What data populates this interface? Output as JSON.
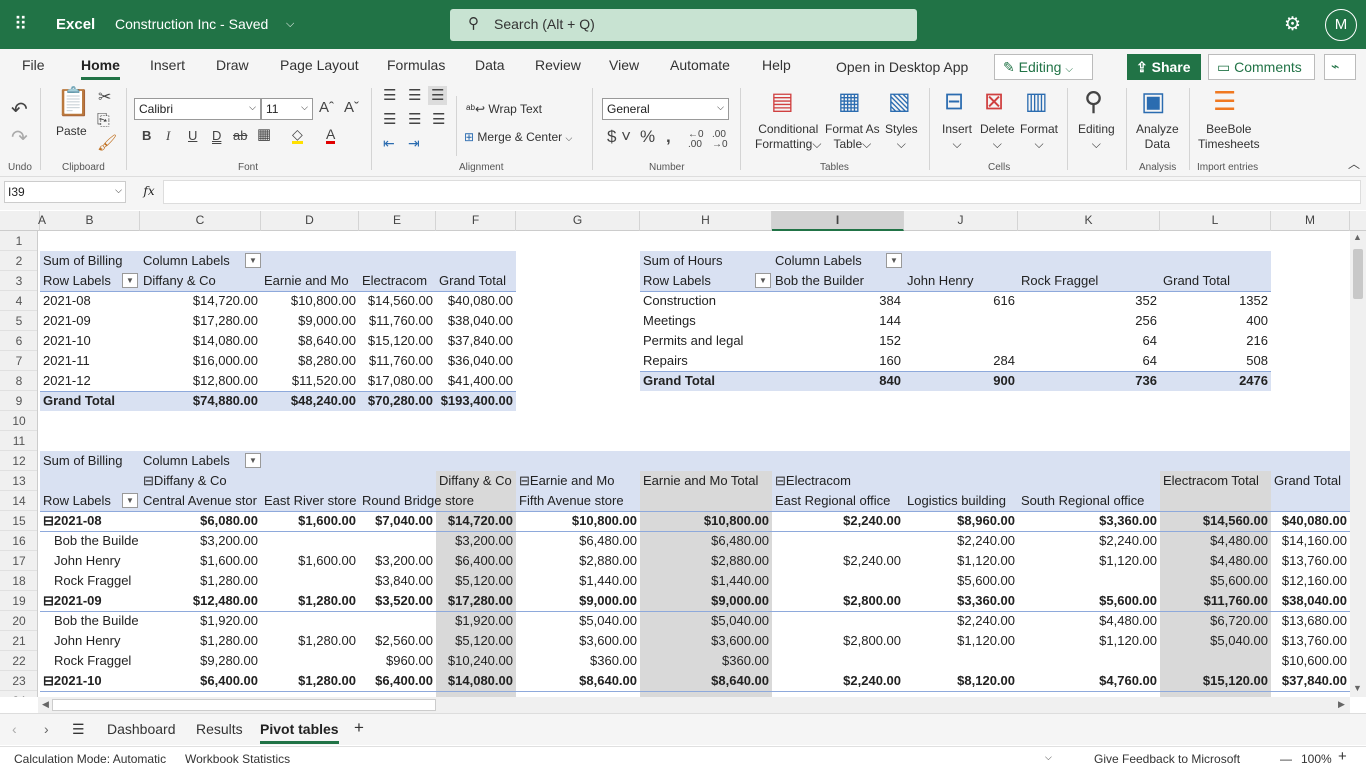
{
  "app": {
    "name": "Excel",
    "doc_title": "Construction Inc - Saved",
    "search_placeholder": "Search (Alt + Q)",
    "avatar": "M",
    "accent": "#217346"
  },
  "menu": {
    "items": [
      "File",
      "Home",
      "Insert",
      "Draw",
      "Page Layout",
      "Formulas",
      "Data",
      "Review",
      "View",
      "Automate",
      "Help"
    ],
    "open_desktop": "Open in Desktop App",
    "editing": "Editing",
    "share": "Share",
    "comments": "Comments"
  },
  "ribbon": {
    "groups": {
      "undo": "Undo",
      "clipboard": "Clipboard",
      "font": "Font",
      "alignment": "Alignment",
      "number": "Number",
      "tables": "Tables",
      "cells": "Cells",
      "analysis": "Analysis",
      "import": "Import entries"
    },
    "paste": "Paste",
    "font_name": "Calibri",
    "font_size": "11",
    "wrap_text": "Wrap Text",
    "merge_center": "Merge & Center",
    "number_format": "General",
    "conditional_1": "Conditional",
    "conditional_2": "Formatting",
    "format_table_1": "Format As",
    "format_table_2": "Table",
    "styles": "Styles",
    "insert": "Insert",
    "delete": "Delete",
    "format": "Format",
    "editing": "Editing",
    "analyze_1": "Analyze",
    "analyze_2": "Data",
    "beebole_1": "BeeBole",
    "beebole_2": "Timesheets"
  },
  "formula_bar": {
    "name_box": "I39",
    "fx": "fx",
    "formula": ""
  },
  "sheet": {
    "columns": [
      "A",
      "B",
      "C",
      "D",
      "E",
      "F",
      "G",
      "H",
      "I",
      "J",
      "K",
      "L",
      "M"
    ],
    "selected_column": "I",
    "row_numbers": [
      "1",
      "2",
      "3",
      "4",
      "5",
      "6",
      "7",
      "8",
      "9",
      "10",
      "11",
      "12",
      "13",
      "14",
      "15",
      "16",
      "17",
      "18",
      "19",
      "20",
      "21",
      "22",
      "23",
      "24"
    ],
    "rows": [
      {
        "n": 2,
        "cells": [
          "Sum of Billing",
          "Column Labels",
          "",
          "",
          "",
          "",
          "Sum of Hours",
          "Column Labels",
          "",
          "",
          "",
          ""
        ]
      },
      {
        "n": 3,
        "cells": [
          "Row Labels",
          "Diffany & Co",
          "Earnie and Mo",
          "Electracom",
          "Grand Total",
          "",
          "Row Labels",
          "Bob the Builder",
          "John Henry",
          "Rock Fraggel",
          "Grand Total",
          ""
        ]
      },
      {
        "n": 4,
        "cells": [
          "2021-08",
          "$14,720.00",
          "$10,800.00",
          "$14,560.00",
          "$40,080.00",
          "",
          "Construction",
          "384",
          "616",
          "352",
          "1352",
          ""
        ]
      },
      {
        "n": 5,
        "cells": [
          "2021-09",
          "$17,280.00",
          "$9,000.00",
          "$11,760.00",
          "$38,040.00",
          "",
          "Meetings",
          "144",
          "",
          "256",
          "400",
          ""
        ]
      },
      {
        "n": 6,
        "cells": [
          "2021-10",
          "$14,080.00",
          "$8,640.00",
          "$15,120.00",
          "$37,840.00",
          "",
          "Permits and legal",
          "152",
          "",
          "64",
          "216",
          ""
        ]
      },
      {
        "n": 7,
        "cells": [
          "2021-11",
          "$16,000.00",
          "$8,280.00",
          "$11,760.00",
          "$36,040.00",
          "",
          "Repairs",
          "160",
          "284",
          "64",
          "508",
          ""
        ]
      },
      {
        "n": 8,
        "cells": [
          "2021-12",
          "$12,800.00",
          "$11,520.00",
          "$17,080.00",
          "$41,400.00",
          "",
          "Grand Total",
          "840",
          "900",
          "736",
          "2476",
          ""
        ]
      },
      {
        "n": 9,
        "cells": [
          "Grand Total",
          "$74,880.00",
          "$48,240.00",
          "$70,280.00",
          "$193,400.00",
          "",
          "",
          "",
          "",
          "",
          "",
          ""
        ]
      },
      {
        "n": 12,
        "cells": [
          "Sum of Billing",
          "Column Labels",
          "",
          "",
          "",
          "",
          "",
          "",
          "",
          "",
          "",
          ""
        ]
      },
      {
        "n": 13,
        "cells": [
          "",
          "⊟Diffany & Co",
          "",
          "",
          "Diffany & Co",
          "⊟Earnie and Mo",
          "Earnie and Mo Total",
          "⊟Electracom",
          "",
          "",
          "Electracom Total",
          "Grand Total"
        ]
      },
      {
        "n": 14,
        "cells": [
          "Row Labels",
          "Central Avenue stor",
          "East River store",
          "Round Bridge store",
          "",
          "Fifth Avenue store",
          "",
          "East Regional office",
          "Logistics building",
          "South Regional office",
          "",
          ""
        ]
      },
      {
        "n": 15,
        "cells": [
          "⊟2021-08",
          "$6,080.00",
          "$1,600.00",
          "$7,040.00",
          "$14,720.00",
          "$10,800.00",
          "$10,800.00",
          "$2,240.00",
          "$8,960.00",
          "$3,360.00",
          "$14,560.00",
          "$40,080.00"
        ]
      },
      {
        "n": 16,
        "cells": [
          "Bob the Builde",
          "$3,200.00",
          "",
          "",
          "$3,200.00",
          "$6,480.00",
          "$6,480.00",
          "",
          "$2,240.00",
          "$2,240.00",
          "$4,480.00",
          "$14,160.00"
        ]
      },
      {
        "n": 17,
        "cells": [
          "John Henry",
          "$1,600.00",
          "$1,600.00",
          "$3,200.00",
          "$6,400.00",
          "$2,880.00",
          "$2,880.00",
          "$2,240.00",
          "$1,120.00",
          "$1,120.00",
          "$4,480.00",
          "$13,760.00"
        ]
      },
      {
        "n": 18,
        "cells": [
          "Rock Fraggel",
          "$1,280.00",
          "",
          "$3,840.00",
          "$5,120.00",
          "$1,440.00",
          "$1,440.00",
          "",
          "$5,600.00",
          "",
          "$5,600.00",
          "$12,160.00"
        ]
      },
      {
        "n": 19,
        "cells": [
          "⊟2021-09",
          "$12,480.00",
          "$1,280.00",
          "$3,520.00",
          "$17,280.00",
          "$9,000.00",
          "$9,000.00",
          "$2,800.00",
          "$3,360.00",
          "$5,600.00",
          "$11,760.00",
          "$38,040.00"
        ]
      },
      {
        "n": 20,
        "cells": [
          "Bob the Builde",
          "$1,920.00",
          "",
          "",
          "$1,920.00",
          "$5,040.00",
          "$5,040.00",
          "",
          "$2,240.00",
          "$4,480.00",
          "$6,720.00",
          "$13,680.00"
        ]
      },
      {
        "n": 21,
        "cells": [
          "John Henry",
          "$1,280.00",
          "$1,280.00",
          "$2,560.00",
          "$5,120.00",
          "$3,600.00",
          "$3,600.00",
          "$2,800.00",
          "$1,120.00",
          "$1,120.00",
          "$5,040.00",
          "$13,760.00"
        ]
      },
      {
        "n": 22,
        "cells": [
          "Rock Fraggel",
          "$9,280.00",
          "",
          "$960.00",
          "$10,240.00",
          "$360.00",
          "$360.00",
          "",
          "",
          "",
          "",
          "$10,600.00"
        ]
      },
      {
        "n": 23,
        "cells": [
          "⊟2021-10",
          "$6,400.00",
          "$1,280.00",
          "$6,400.00",
          "$14,080.00",
          "$8,640.00",
          "$8,640.00",
          "$2,240.00",
          "$8,120.00",
          "$4,760.00",
          "$15,120.00",
          "$37,840.00"
        ]
      }
    ]
  },
  "sheet_tabs": {
    "items": [
      "Dashboard",
      "Results",
      "Pivot tables"
    ],
    "active": "Pivot tables",
    "add": "+"
  },
  "status": {
    "calc_mode": "Calculation Mode: Automatic",
    "stats": "Workbook Statistics",
    "feedback": "Give Feedback to Microsoft",
    "zoom": "100%",
    "zoom_out": "—",
    "zoom_in": "+"
  }
}
